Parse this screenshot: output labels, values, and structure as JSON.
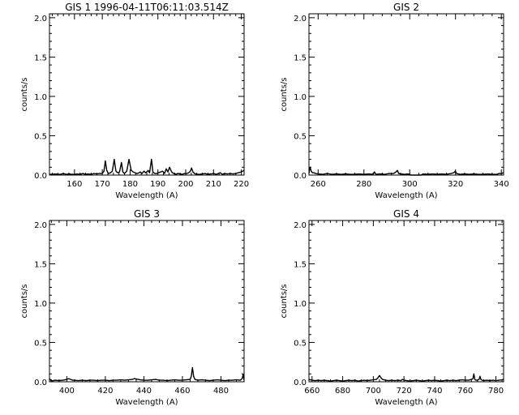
{
  "chart_data": [
    {
      "type": "line",
      "title": "GIS 1 1996-04-11T06:11:03.514Z",
      "xlabel": "Wavelength (A)",
      "ylabel": "counts/s",
      "xlim": [
        151,
        221
      ],
      "ylim": [
        0,
        2.05
      ],
      "xticks": [
        160,
        170,
        180,
        190,
        200,
        210,
        220
      ],
      "yticks": [
        "0.0",
        "0.5",
        "1.0",
        "1.5",
        "2.0"
      ],
      "grid": false,
      "x": [
        151,
        152,
        153,
        154,
        155,
        156,
        157,
        158,
        159,
        160,
        161,
        162,
        163,
        164,
        165,
        166,
        167,
        168,
        169,
        170,
        170.6,
        171.1,
        171.6,
        172.2,
        173,
        173.6,
        174.3,
        174.9,
        175.5,
        176.2,
        176.9,
        177.4,
        178,
        178.8,
        179.6,
        180.4,
        181.1,
        181.8,
        182.4,
        183,
        183.7,
        184.3,
        185,
        185.5,
        186,
        186.5,
        187,
        187.7,
        188.2,
        188.9,
        189.5,
        190.2,
        191,
        191.7,
        192.4,
        193,
        193.6,
        194.2,
        194.8,
        195.2,
        195.8,
        196.5,
        197.2,
        198,
        198.8,
        199.6,
        200.4,
        201.1,
        201.7,
        202.1,
        202.6,
        203.2,
        204,
        205,
        206,
        207,
        208,
        209,
        210,
        211,
        211.8,
        212.4,
        213.2,
        214,
        215,
        216,
        217,
        218,
        219,
        220,
        221
      ],
      "values": [
        0.01,
        0.01,
        0.015,
        0.01,
        0.01,
        0.02,
        0.01,
        0.015,
        0.01,
        0.01,
        0.015,
        0.01,
        0.02,
        0.01,
        0.015,
        0.01,
        0.02,
        0.015,
        0.02,
        0.02,
        0.05,
        0.18,
        0.06,
        0.02,
        0.03,
        0.05,
        0.2,
        0.05,
        0.03,
        0.04,
        0.16,
        0.04,
        0.02,
        0.05,
        0.2,
        0.06,
        0.04,
        0.03,
        0.02,
        0.025,
        0.04,
        0.02,
        0.05,
        0.03,
        0.04,
        0.06,
        0.03,
        0.2,
        0.04,
        0.02,
        0.02,
        0.03,
        0.04,
        0.05,
        0.02,
        0.08,
        0.04,
        0.1,
        0.05,
        0.03,
        0.02,
        0.01,
        0.02,
        0.015,
        0.01,
        0.02,
        0.02,
        0.03,
        0.05,
        0.09,
        0.04,
        0.02,
        0.01,
        0.01,
        0.015,
        0.02,
        0.01,
        0.015,
        0.02,
        0.01,
        0.02,
        0.03,
        0.01,
        0.02,
        0.015,
        0.02,
        0.015,
        0.02,
        0.03,
        0.04,
        0.06
      ]
    },
    {
      "type": "line",
      "title": "GIS 2",
      "xlabel": "Wavelength (A)",
      "ylabel": "counts/s",
      "xlim": [
        256,
        341
      ],
      "ylim": [
        0,
        2.05
      ],
      "xticks": [
        260,
        280,
        300,
        320,
        340
      ],
      "yticks": [
        "0.0",
        "0.5",
        "1.0",
        "1.5",
        "2.0"
      ],
      "grid": false,
      "x": [
        256,
        256.5,
        257,
        257.5,
        258,
        259,
        260,
        262,
        264,
        266,
        268,
        270,
        272,
        274,
        276,
        278,
        280,
        282,
        284,
        284.6,
        285.2,
        287,
        289,
        291,
        293,
        294,
        294.6,
        295.2,
        296,
        298,
        299,
        300,
        300.3,
        302,
        303,
        305,
        305.5,
        306,
        308,
        310,
        312,
        314,
        316,
        318,
        319.3,
        319.9,
        320.5,
        322,
        324,
        326,
        328,
        330,
        332,
        334,
        336,
        338,
        339,
        340,
        341
      ],
      "values": [
        0.02,
        0.1,
        0.05,
        0.03,
        0.03,
        0.02,
        0.015,
        0.01,
        0.02,
        0.01,
        0.015,
        0.01,
        0.015,
        0.01,
        0.01,
        0.015,
        0.01,
        0.015,
        0.01,
        0.04,
        0.01,
        0.015,
        0.01,
        0.02,
        0.02,
        0.04,
        0.06,
        0.02,
        0.015,
        0.01,
        0.015,
        0.01,
        0,
        0,
        0,
        0,
        0.01,
        0.015,
        0.01,
        0.015,
        0.01,
        0.015,
        0.01,
        0.02,
        0.03,
        0.05,
        0.02,
        0.01,
        0.015,
        0.01,
        0.015,
        0.01,
        0.01,
        0.015,
        0.01,
        0.01,
        0.02,
        0.02,
        0.03
      ]
    },
    {
      "type": "line",
      "title": "GIS 3",
      "xlabel": "Wavelength (A)",
      "ylabel": "counts/s",
      "xlim": [
        391,
        492
      ],
      "ylim": [
        0,
        2.05
      ],
      "xticks": [
        400,
        420,
        440,
        460,
        480
      ],
      "yticks": [
        "0.0",
        "0.5",
        "1.0",
        "1.5",
        "2.0"
      ],
      "grid": false,
      "x": [
        391,
        392,
        394,
        396,
        398,
        400,
        401,
        402,
        403,
        404,
        406,
        408,
        410,
        412,
        414,
        416,
        418,
        420,
        422,
        424,
        426,
        428,
        430,
        432,
        434,
        435,
        436,
        437,
        438,
        440,
        442,
        444,
        446,
        448,
        450,
        452,
        454,
        456,
        458,
        460,
        462,
        464,
        464.6,
        465.2,
        465.8,
        466.5,
        468,
        470,
        472,
        474,
        476,
        478,
        480,
        482,
        484,
        486,
        488,
        490,
        491,
        491.5,
        492
      ],
      "values": [
        0.04,
        0.01,
        0.02,
        0.015,
        0.02,
        0.03,
        0.04,
        0.03,
        0.02,
        0.02,
        0.015,
        0.02,
        0.015,
        0.02,
        0.02,
        0.015,
        0.02,
        0.02,
        0.015,
        0.02,
        0.02,
        0.025,
        0.02,
        0.025,
        0.03,
        0.04,
        0.035,
        0.03,
        0.025,
        0.02,
        0.02,
        0.025,
        0.03,
        0.02,
        0.02,
        0.015,
        0.02,
        0.025,
        0.02,
        0.02,
        0.025,
        0.03,
        0.07,
        0.18,
        0.07,
        0.03,
        0.02,
        0.025,
        0.02,
        0.015,
        0.02,
        0.025,
        0.02,
        0.015,
        0.02,
        0.02,
        0.025,
        0.02,
        0.04,
        0.09,
        0.02
      ]
    },
    {
      "type": "line",
      "title": "GIS 4",
      "xlabel": "Wavelength (A)",
      "ylabel": "counts/s",
      "xlim": [
        658,
        785
      ],
      "ylim": [
        0,
        2.05
      ],
      "xticks": [
        660,
        680,
        700,
        720,
        740,
        760,
        780
      ],
      "yticks": [
        "0.0",
        "0.5",
        "1.0",
        "1.5",
        "2.0"
      ],
      "grid": false,
      "x": [
        658,
        660,
        662,
        664,
        666,
        668,
        670,
        672,
        674,
        676,
        678,
        680,
        682,
        684,
        686,
        688,
        690,
        692,
        694,
        696,
        698,
        700,
        702,
        703,
        704,
        705,
        706,
        708,
        710,
        712,
        714,
        716,
        718,
        719,
        720,
        722,
        724,
        726,
        728,
        730,
        732,
        734,
        736,
        738,
        740,
        742,
        744,
        746,
        748,
        750,
        752,
        754,
        756,
        758,
        760,
        762,
        764,
        765,
        765.6,
        766.2,
        767,
        768,
        769,
        769.6,
        770.2,
        771,
        772,
        774,
        776,
        778,
        780,
        782,
        784,
        785
      ],
      "values": [
        0.03,
        0.02,
        0.015,
        0.02,
        0.015,
        0.02,
        0.015,
        0.01,
        0.015,
        0.02,
        0.015,
        0.01,
        0.015,
        0.02,
        0.015,
        0.02,
        0.01,
        0.015,
        0.02,
        0.015,
        0.02,
        0.025,
        0.03,
        0.05,
        0.08,
        0.05,
        0.03,
        0.02,
        0.015,
        0.02,
        0.015,
        0.02,
        0.015,
        0.03,
        0.02,
        0.015,
        0.01,
        0.015,
        0.02,
        0.015,
        0.01,
        0.015,
        0.02,
        0.015,
        0.02,
        0.015,
        0.01,
        0.015,
        0.02,
        0.015,
        0.02,
        0.015,
        0.02,
        0.025,
        0.02,
        0.02,
        0.03,
        0.04,
        0.1,
        0.03,
        0.02,
        0.02,
        0.03,
        0.07,
        0.03,
        0.02,
        0.015,
        0.02,
        0.015,
        0.02,
        0.015,
        0.02,
        0.025,
        0.03
      ]
    }
  ]
}
